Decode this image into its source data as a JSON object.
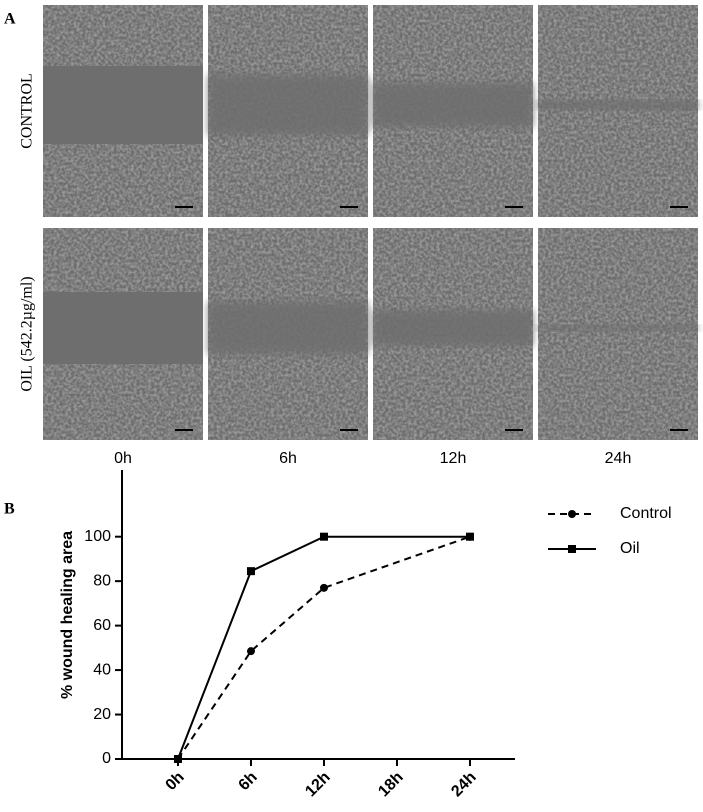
{
  "panel_a": {
    "label": "A",
    "rows": [
      "CONTROL",
      "OIL (542.2µg/ml)"
    ],
    "columns": [
      "0h",
      "6h",
      "12h",
      "24h"
    ]
  },
  "panel_b": {
    "label": "B"
  },
  "chart_data": {
    "type": "line",
    "y_label": "% wound healing area",
    "x": [
      0,
      6,
      12,
      24
    ],
    "xlim": [
      -4.6,
      27.7
    ],
    "xticks": [
      {
        "value": 0,
        "label": "0h"
      },
      {
        "value": 6,
        "label": "6h"
      },
      {
        "value": 12,
        "label": "12h"
      },
      {
        "value": 18,
        "label": "18h"
      },
      {
        "value": 24,
        "label": "24h"
      }
    ],
    "ylim": [
      0,
      130
    ],
    "yticks": [
      0,
      20,
      40,
      60,
      80,
      100
    ],
    "legend": "right",
    "series": [
      {
        "name": "Control",
        "color": "#000000",
        "line_style": "dashed",
        "marker": "circle",
        "values": [
          0,
          48.5,
          77,
          100
        ]
      },
      {
        "name": "Oil",
        "color": "#000000",
        "line_style": "solid",
        "marker": "square",
        "values": [
          0,
          84.5,
          100,
          100
        ]
      }
    ]
  }
}
